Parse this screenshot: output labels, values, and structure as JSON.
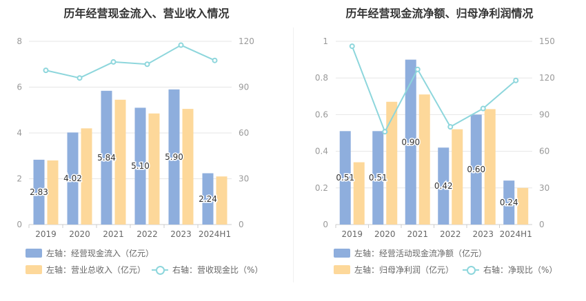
{
  "charts": [
    {
      "title": "历年经营现金流入、营业收入情况",
      "legend": {
        "bar1": "左轴：经营现金流入（亿元）",
        "bar2": "左轴：营业总收入（亿元）",
        "line": "右轴：营收现金比（%）"
      }
    },
    {
      "title": "历年经营现金流净额、归母净利润情况",
      "legend": {
        "bar1": "左轴：经营活动现金流净额（亿元）",
        "bar2": "左轴：归母净利润（亿元）",
        "line": "右轴：净现比（%）"
      }
    }
  ],
  "colors": {
    "bar1": "#8eaedd",
    "bar2": "#fdd89a",
    "line": "#8dd6dc",
    "grid": "#e6e6e6",
    "axis": "#999999"
  },
  "chart_data": [
    {
      "type": "bar",
      "categories": [
        "2019",
        "2020",
        "2021",
        "2022",
        "2023",
        "2024H1"
      ],
      "series": [
        {
          "name": "左轴：经营现金流入（亿元）",
          "values": [
            2.83,
            4.02,
            5.84,
            5.1,
            5.9,
            2.24
          ],
          "labels": [
            "2.83",
            "4.02",
            "5.84",
            "5.10",
            "5.90",
            "2.24"
          ]
        },
        {
          "name": "左轴：营业总收入（亿元）",
          "values": [
            2.8,
            4.2,
            5.45,
            4.85,
            5.05,
            2.1
          ]
        },
        {
          "name": "右轴：营收现金比（%）",
          "values": [
            101,
            96,
            106.5,
            105,
            117.5,
            107.5
          ],
          "axis": "right",
          "type": "line"
        }
      ],
      "left_axis": {
        "ticks": [
          "0",
          "2",
          "4",
          "6",
          "8"
        ],
        "ylim": [
          0,
          8
        ]
      },
      "right_axis": {
        "ticks": [
          "0",
          "30",
          "60",
          "90",
          "120"
        ],
        "ylim": [
          0,
          120
        ]
      }
    },
    {
      "type": "bar",
      "categories": [
        "2019",
        "2020",
        "2021",
        "2022",
        "2023",
        "2024H1"
      ],
      "series": [
        {
          "name": "左轴：经营活动现金流净额（亿元）",
          "values": [
            0.51,
            0.51,
            0.9,
            0.42,
            0.6,
            0.24
          ],
          "labels": [
            "0.51",
            "0.51",
            "0.90",
            "0.42",
            "0.60",
            "0.24"
          ]
        },
        {
          "name": "左轴：归母净利润（亿元）",
          "values": [
            0.34,
            0.67,
            0.71,
            0.52,
            0.63,
            0.2
          ]
        },
        {
          "name": "右轴：净现比（%）",
          "values": [
            146,
            76,
            127,
            80,
            95,
            118
          ],
          "axis": "right",
          "type": "line"
        }
      ],
      "left_axis": {
        "ticks": [
          "0",
          "0.2",
          "0.4",
          "0.6",
          "0.8",
          "1"
        ],
        "ylim": [
          0,
          1
        ]
      },
      "right_axis": {
        "ticks": [
          "0",
          "30",
          "60",
          "90",
          "120",
          "150"
        ],
        "ylim": [
          0,
          150
        ]
      }
    }
  ]
}
